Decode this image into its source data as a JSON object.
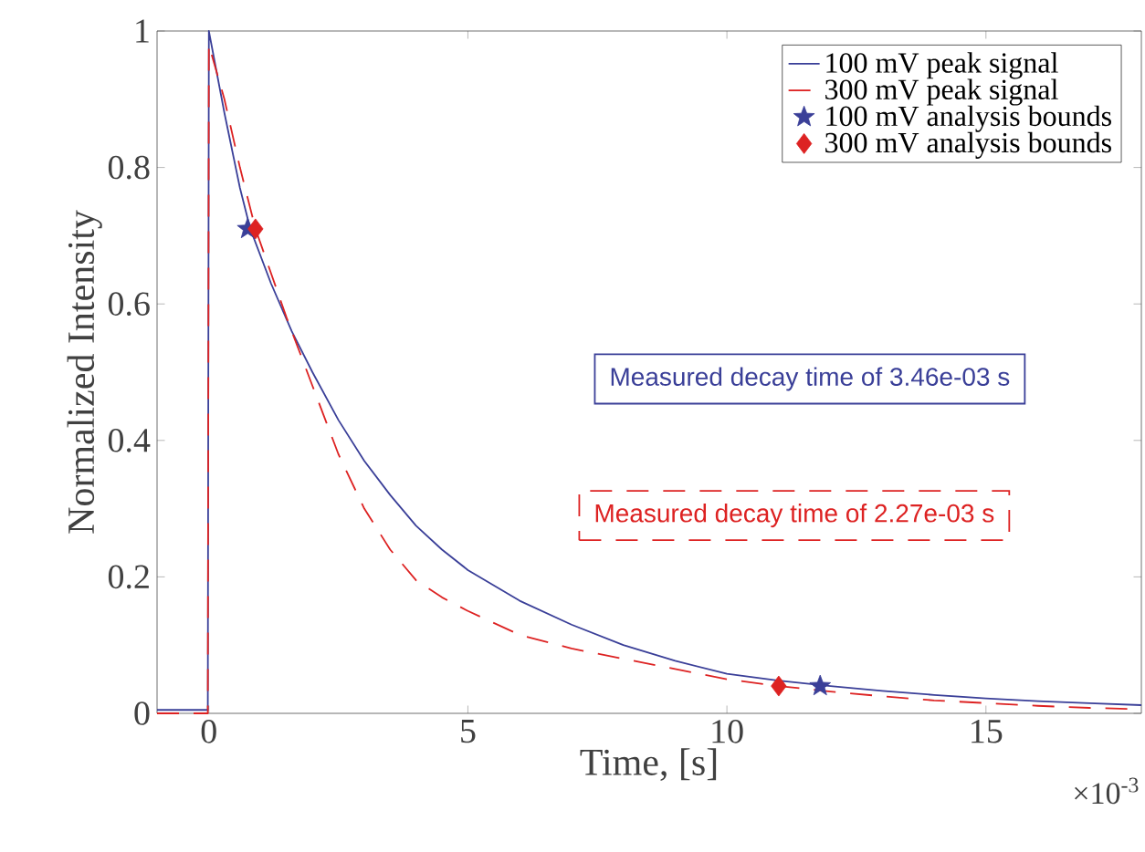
{
  "chart_data": {
    "type": "line",
    "xlabel": "Time, [s]",
    "ylabel": "Normalized Intensity",
    "xlim": [
      -1,
      18
    ],
    "ylim": [
      0,
      1
    ],
    "xticks": [
      0,
      5,
      10,
      15
    ],
    "yticks": [
      0,
      0.2,
      0.4,
      0.6,
      0.8,
      1
    ],
    "legend": "top right",
    "series": [
      {
        "name": "100 mV peak signal",
        "color": "#3a3f98",
        "line_style": "solid",
        "x": [
          -1,
          -0.02,
          0,
          0.3,
          0.6,
          0.8,
          1.2,
          1.6,
          2,
          2.5,
          3,
          3.5,
          4,
          4.5,
          5,
          6,
          7,
          8,
          9,
          10,
          11,
          12,
          13,
          14,
          15,
          16,
          17,
          18
        ],
        "values": [
          0.005,
          0.005,
          1,
          0.88,
          0.77,
          0.71,
          0.63,
          0.56,
          0.5,
          0.43,
          0.37,
          0.32,
          0.275,
          0.24,
          0.21,
          0.165,
          0.13,
          0.1,
          0.077,
          0.058,
          0.048,
          0.04,
          0.033,
          0.027,
          0.022,
          0.018,
          0.015,
          0.012
        ]
      },
      {
        "name": "300 mV peak signal",
        "color": "#dd2222",
        "line_style": "dashed",
        "x": [
          -1,
          -0.02,
          0,
          0.3,
          0.6,
          0.9,
          1.5,
          2,
          2.5,
          3,
          3.5,
          4,
          4.5,
          5,
          6,
          7,
          8,
          9,
          10,
          11,
          12,
          13,
          14,
          15,
          16,
          17,
          18
        ],
        "values": [
          0,
          0,
          0.98,
          0.9,
          0.8,
          0.71,
          0.58,
          0.48,
          0.38,
          0.3,
          0.24,
          0.195,
          0.17,
          0.15,
          0.115,
          0.095,
          0.08,
          0.065,
          0.05,
          0.04,
          0.032,
          0.025,
          0.019,
          0.015,
          0.011,
          0.008,
          0.006
        ]
      },
      {
        "name": "100 mV analysis bounds",
        "type": "scatter",
        "color": "#3a3f98",
        "marker": "star",
        "x": [
          0.75,
          11.8
        ],
        "values": [
          0.71,
          0.04
        ]
      },
      {
        "name": "300 mV analysis bounds",
        "type": "scatter",
        "color": "#dd2222",
        "marker": "diamond",
        "x": [
          0.9,
          11
        ],
        "values": [
          0.71,
          0.04
        ]
      }
    ],
    "annotations": [
      "Measured decay time of 3.46e-03 s",
      "Measured decay time of 2.27e-03 s",
      "×10$^{-3}$"
    ]
  }
}
